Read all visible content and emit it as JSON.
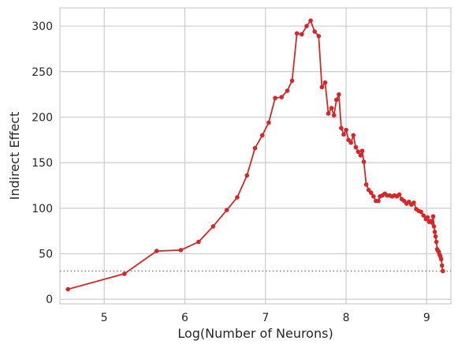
{
  "chart_data": {
    "type": "line",
    "xlabel": "Log(Number of Neurons)",
    "ylabel": "Indirect Effect",
    "xlim": [
      4.45,
      9.3
    ],
    "ylim": [
      -5,
      320
    ],
    "x_ticks": [
      5,
      6,
      7,
      8,
      9
    ],
    "y_ticks": [
      0,
      50,
      100,
      150,
      200,
      250,
      300
    ],
    "x_tick_labels": [
      "5",
      "6",
      "7",
      "8",
      "9"
    ],
    "y_tick_labels": [
      "0",
      "50",
      "100",
      "150",
      "200",
      "250",
      "300"
    ],
    "grid": true,
    "line_color": "#d62728",
    "reference_line": {
      "y": 31,
      "color": "#808080",
      "style": "dotted"
    },
    "series": [
      {
        "x": [
          4.55,
          5.25,
          5.65,
          5.95,
          6.17,
          6.35,
          6.52,
          6.65,
          6.77,
          6.87,
          6.96,
          7.04,
          7.12,
          7.2,
          7.27,
          7.33,
          7.39,
          7.45,
          7.51,
          7.56,
          7.61,
          7.66,
          7.7,
          7.74,
          7.78,
          7.82,
          7.85,
          7.88,
          7.91,
          7.94,
          7.97,
          8.0,
          8.03,
          8.06,
          8.09,
          8.12,
          8.15,
          8.18,
          8.2,
          8.22,
          8.25,
          8.28,
          8.31,
          8.34,
          8.37,
          8.4,
          8.42,
          8.45,
          8.48,
          8.51,
          8.54,
          8.57,
          8.6,
          8.63,
          8.66,
          8.69,
          8.72,
          8.75,
          8.78,
          8.81,
          8.84,
          8.87,
          8.9,
          8.93,
          8.96,
          8.99,
          9.01,
          9.03,
          9.05,
          9.07,
          9.08,
          9.09,
          9.1,
          9.11,
          9.12,
          9.13,
          9.14,
          9.15,
          9.16,
          9.17,
          9.18,
          9.19,
          9.2
        ],
        "y": [
          11,
          28,
          53,
          54,
          63,
          80,
          98,
          112,
          136,
          166,
          180,
          194,
          221,
          222,
          229,
          240,
          292,
          291,
          300,
          306,
          294,
          289,
          233,
          238,
          204,
          210,
          202,
          219,
          225,
          188,
          181,
          186,
          175,
          172,
          180,
          167,
          162,
          158,
          163,
          151,
          126,
          120,
          117,
          113,
          108,
          108,
          113,
          114,
          116,
          114,
          114,
          113,
          114,
          113,
          115,
          110,
          108,
          105,
          107,
          104,
          106,
          99,
          97,
          96,
          92,
          88,
          90,
          85,
          86,
          84,
          91,
          80,
          74,
          69,
          63,
          55,
          53,
          52,
          49,
          47,
          44,
          37,
          31
        ]
      }
    ]
  }
}
